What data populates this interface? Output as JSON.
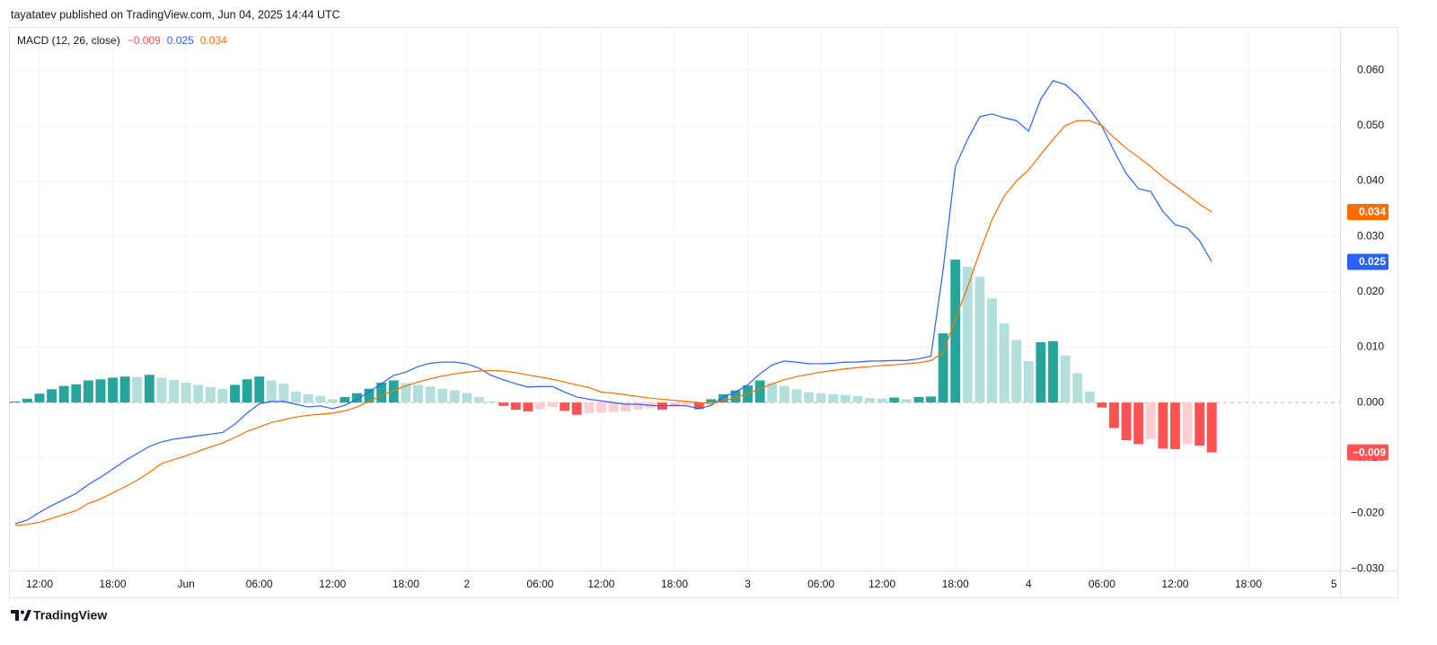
{
  "header": "tayatatev published on TradingView.com, Jun 04, 2025 14:44 UTC",
  "footer": "TradingView",
  "chart_data": {
    "type": "macd",
    "title": "MACD (12, 26, close)",
    "categories": [
      null,
      null,
      "12:00",
      null,
      null,
      null,
      null,
      null,
      "18:00",
      null,
      null,
      null,
      null,
      null,
      "Jun",
      null,
      null,
      null,
      null,
      null,
      "06:00",
      null,
      null,
      null,
      null,
      null,
      "12:00",
      null,
      null,
      null,
      null,
      null,
      "18:00",
      null,
      null,
      null,
      null,
      "2",
      null,
      null,
      null,
      null,
      null,
      "06:00",
      null,
      null,
      null,
      null,
      "12:00",
      null,
      null,
      null,
      null,
      null,
      "18:00",
      null,
      null,
      null,
      null,
      null,
      "3",
      null,
      null,
      null,
      null,
      null,
      "06:00",
      null,
      null,
      null,
      null,
      "12:00",
      null,
      null,
      null,
      null,
      null,
      "18:00",
      null,
      null,
      null,
      null,
      null,
      "4",
      null,
      null,
      null,
      null,
      null,
      "06:00",
      null,
      null,
      null,
      null,
      null,
      "12:00",
      null,
      null,
      null,
      null,
      null,
      "18:00",
      null,
      null,
      null,
      null,
      null,
      null,
      "5"
    ],
    "series": [
      {
        "kind": "histogram",
        "colors": [
          "#26a69a",
          "#b2dfdb",
          "#ffcdd2",
          "#ff5252"
        ],
        "last_value_label": "−0.009",
        "values": [
          0.0002,
          0.0007,
          0.0016,
          0.0024,
          0.003,
          0.0033,
          0.004,
          0.0042,
          0.0045,
          0.0047,
          0.0046,
          0.005,
          0.0045,
          0.0041,
          0.0036,
          0.0032,
          0.0028,
          0.0025,
          0.0032,
          0.0042,
          0.0047,
          0.004,
          0.0034,
          0.002,
          0.0015,
          0.0012,
          0.0006,
          0.001,
          0.0017,
          0.0025,
          0.0036,
          0.004,
          0.0035,
          0.0032,
          0.0029,
          0.0025,
          0.0022,
          0.0017,
          0.001,
          0.0002,
          -0.0006,
          -0.0013,
          -0.0016,
          -0.0012,
          -0.0008,
          -0.0015,
          -0.0022,
          -0.0019,
          -0.0018,
          -0.0017,
          -0.0016,
          -0.0013,
          -0.001,
          -0.0013,
          -0.0008,
          -0.0005,
          -0.0012,
          0.0006,
          0.0015,
          0.0022,
          0.0031,
          0.004,
          0.0035,
          0.003,
          0.0024,
          0.0019,
          0.0017,
          0.0015,
          0.0014,
          0.0012,
          0.0008,
          0.0007,
          0.0009,
          0.0006,
          0.001,
          0.0011,
          0.0125,
          0.0258,
          0.0245,
          0.0227,
          0.0188,
          0.0143,
          0.0113,
          0.0075,
          0.0109,
          0.0111,
          0.0085,
          0.0053,
          0.002,
          -0.0009,
          -0.0046,
          -0.0068,
          -0.0075,
          -0.0066,
          -0.0083,
          -0.0084,
          -0.0074,
          -0.0078,
          -0.009,
          null,
          null,
          null,
          null,
          null,
          null,
          null,
          null,
          null,
          null
        ]
      },
      {
        "kind": "line",
        "color": "#2962ff",
        "last_value_label": "0.025",
        "values": [
          -0.0219,
          -0.0212,
          -0.0198,
          -0.0186,
          -0.0175,
          -0.0164,
          -0.0148,
          -0.0135,
          -0.012,
          -0.0105,
          -0.0092,
          -0.0079,
          -0.0071,
          -0.0066,
          -0.0063,
          -0.006,
          -0.0057,
          -0.0054,
          -0.0039,
          -0.0019,
          -0.0002,
          0.0002,
          0.0002,
          -0.0003,
          -0.0008,
          -0.0006,
          -0.0011,
          -0.0005,
          0.0006,
          0.0019,
          0.0034,
          0.0049,
          0.0055,
          0.0065,
          0.0071,
          0.0073,
          0.0073,
          0.007,
          0.0062,
          0.0049,
          0.0041,
          0.0034,
          0.0028,
          0.0029,
          0.0029,
          0.0019,
          0.001,
          0.0006,
          0.0003,
          0.0,
          -0.0003,
          -0.0003,
          -0.0005,
          -0.0006,
          -0.0005,
          -0.0006,
          -0.0011,
          -0.0005,
          0.001,
          0.0019,
          0.0032,
          0.0052,
          0.0068,
          0.0075,
          0.0073,
          0.007,
          0.007,
          0.0071,
          0.0073,
          0.0073,
          0.0075,
          0.0075,
          0.0076,
          0.0076,
          0.0079,
          0.0084,
          0.024,
          0.0426,
          0.0475,
          0.0516,
          0.0521,
          0.0514,
          0.0509,
          0.049,
          0.0548,
          0.0581,
          0.0574,
          0.0555,
          0.0529,
          0.0499,
          0.0454,
          0.0413,
          0.0386,
          0.0381,
          0.0345,
          0.0321,
          0.0315,
          0.0292,
          0.0254,
          null,
          null,
          null,
          null,
          null,
          null,
          null,
          null,
          null,
          null
        ]
      },
      {
        "kind": "line",
        "color": "#ff6d00",
        "last_value_label": "0.034",
        "values": [
          -0.0222,
          -0.022,
          -0.0216,
          -0.0209,
          -0.0202,
          -0.0195,
          -0.0182,
          -0.0174,
          -0.0163,
          -0.0152,
          -0.014,
          -0.0126,
          -0.011,
          -0.0103,
          -0.0096,
          -0.0088,
          -0.008,
          -0.0073,
          -0.0063,
          -0.0052,
          -0.0044,
          -0.0036,
          -0.0031,
          -0.0026,
          -0.0023,
          -0.0021,
          -0.0019,
          -0.0015,
          -0.0008,
          0.0002,
          0.0013,
          0.0022,
          0.003,
          0.0037,
          0.0043,
          0.0048,
          0.0052,
          0.0055,
          0.0057,
          0.0058,
          0.0057,
          0.0054,
          0.005,
          0.0046,
          0.0042,
          0.0037,
          0.0032,
          0.0027,
          0.0019,
          0.0017,
          0.0014,
          0.0011,
          0.0008,
          0.0006,
          0.0004,
          0.0002,
          0.0,
          -0.0002,
          0.0003,
          0.0009,
          0.0016,
          0.0025,
          0.0034,
          0.0041,
          0.0047,
          0.0051,
          0.0055,
          0.0058,
          0.0061,
          0.0063,
          0.0065,
          0.0067,
          0.0068,
          0.007,
          0.0072,
          0.0076,
          0.009,
          0.0151,
          0.0208,
          0.0272,
          0.033,
          0.0373,
          0.04,
          0.042,
          0.0448,
          0.0475,
          0.05,
          0.0509,
          0.0509,
          0.05,
          0.0478,
          0.0459,
          0.0443,
          0.0426,
          0.0407,
          0.0391,
          0.0375,
          0.0358,
          0.0344,
          null,
          null,
          null,
          null,
          null,
          null,
          null,
          null,
          null,
          null
        ]
      }
    ],
    "ylim": [
      -0.0303,
      0.0678
    ],
    "yticks": [
      {
        "value": -0.03,
        "label": "−0.030"
      },
      {
        "value": -0.02,
        "label": "−0.020"
      },
      {
        "value": -0.01,
        "label": "−0.010"
      },
      {
        "value": 0,
        "label": "0.000"
      },
      {
        "value": 0.01,
        "label": "0.010"
      },
      {
        "value": 0.02,
        "label": "0.020"
      },
      {
        "value": 0.03,
        "label": "0.030"
      },
      {
        "value": 0.04,
        "label": "0.040"
      },
      {
        "value": 0.05,
        "label": "0.050"
      },
      {
        "value": 0.06,
        "label": "0.060"
      }
    ],
    "grid": true
  }
}
